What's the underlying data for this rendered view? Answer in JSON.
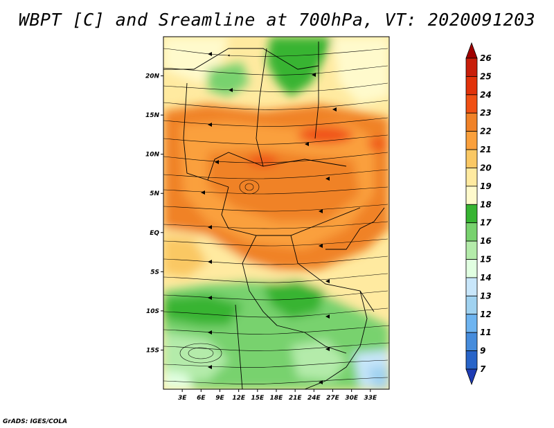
{
  "title": "WBPT [C] and Sreamline at 700hPa, VT: 2020091203",
  "credit": "GrADS: IGES/COLA",
  "map": {
    "lon_range": [
      0,
      36
    ],
    "lat_range": [
      -20,
      25
    ],
    "lat_ticks": [
      {
        "value": 20,
        "label": "20N"
      },
      {
        "value": 15,
        "label": "15N"
      },
      {
        "value": 10,
        "label": "10N"
      },
      {
        "value": 5,
        "label": "5N"
      },
      {
        "value": 0,
        "label": "EQ"
      },
      {
        "value": -5,
        "label": "5S"
      },
      {
        "value": -10,
        "label": "10S"
      },
      {
        "value": -15,
        "label": "15S"
      }
    ],
    "lon_ticks": [
      {
        "value": 3,
        "label": "3E"
      },
      {
        "value": 6,
        "label": "6E"
      },
      {
        "value": 9,
        "label": "9E"
      },
      {
        "value": 12,
        "label": "12E"
      },
      {
        "value": 15,
        "label": "15E"
      },
      {
        "value": 18,
        "label": "18E"
      },
      {
        "value": 21,
        "label": "21E"
      },
      {
        "value": 24,
        "label": "24E"
      },
      {
        "value": 27,
        "label": "27E"
      },
      {
        "value": 30,
        "label": "30E"
      },
      {
        "value": 33,
        "label": "33E"
      }
    ]
  },
  "colorbar": {
    "labels": [
      "26",
      "25",
      "24",
      "23",
      "22",
      "21",
      "20",
      "19",
      "18",
      "17",
      "16",
      "15",
      "14",
      "13",
      "12",
      "11",
      "9",
      "7"
    ],
    "colors": [
      "#a00000",
      "#c81e0a",
      "#e1320a",
      "#f05014",
      "#f08228",
      "#faa03c",
      "#fac864",
      "#ffeaa0",
      "#fffacc",
      "#37b432",
      "#78d26e",
      "#b4ebaa",
      "#e1ffe1",
      "#c8e6fa",
      "#a0d2f0",
      "#6eb4f0",
      "#468cdc",
      "#2864c8",
      "#1e3cb4"
    ]
  },
  "chart_data": {
    "type": "heatmap",
    "title": "WBPT [C] and Sreamline at 700hPa, VT: 2020091203",
    "variable": "WBPT [C]",
    "level": "700hPa",
    "valid_time": "2020091203",
    "x_range": [
      0,
      36
    ],
    "y_range": [
      -20,
      25
    ],
    "color_levels": [
      7,
      9,
      11,
      12,
      13,
      14,
      15,
      16,
      17,
      18,
      19,
      20,
      21,
      22,
      23,
      24,
      25,
      26
    ]
  }
}
